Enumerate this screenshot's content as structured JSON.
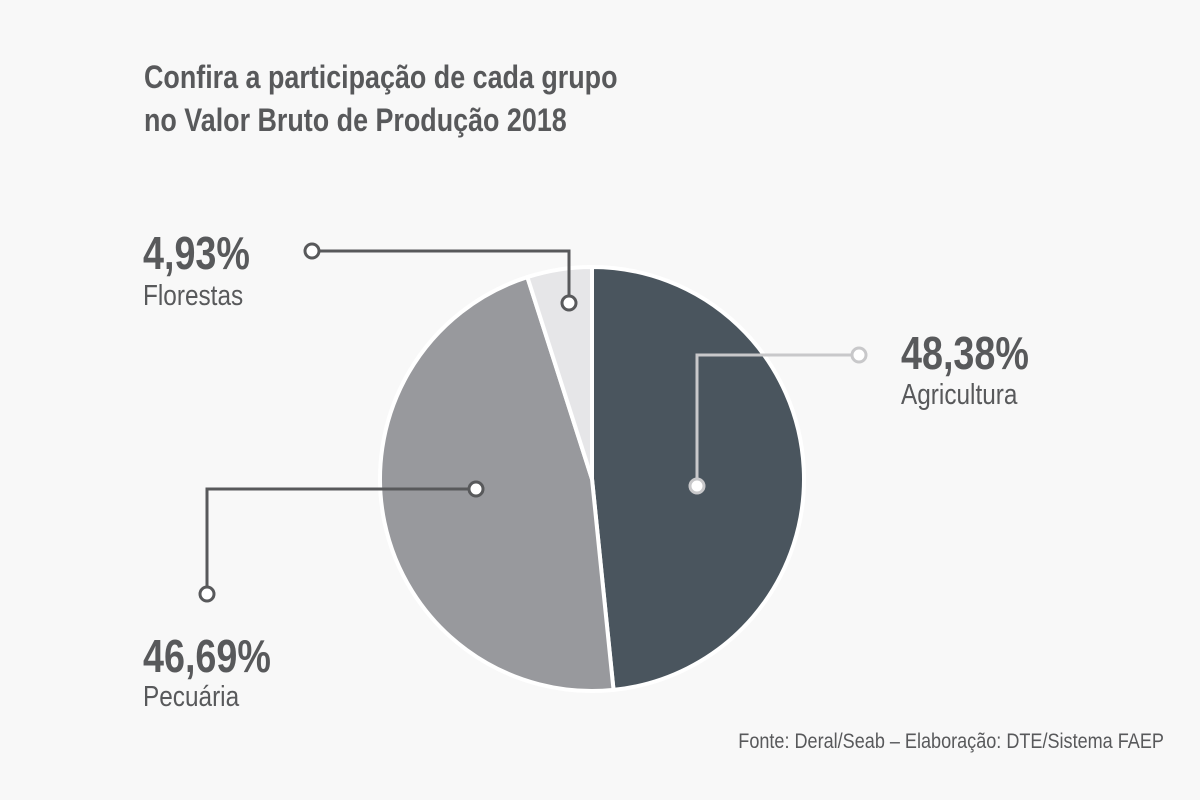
{
  "title": {
    "line1": "Confira a participação de cada grupo",
    "line2": "no Valor Bruto de Produção 2018"
  },
  "source": "Fonte: Deral/Seab – Elaboração: DTE/Sistema FAEP",
  "colors": {
    "background": "#f8f8f8",
    "agricultura": "#4a555e",
    "pecuaria": "#98999d",
    "florestas": "#e6e6e8",
    "text": "#58595b",
    "leader_dark": "#58595b",
    "leader_light": "#c8c8ca"
  },
  "chart_data": {
    "type": "pie",
    "title": "Confira a participação de cada grupo no Valor Bruto de Produção 2018",
    "unit": "%",
    "slices": [
      {
        "label": "Agricultura",
        "value": 48.38,
        "display": "48,38%"
      },
      {
        "label": "Pecuária",
        "value": 46.69,
        "display": "46,69%"
      },
      {
        "label": "Florestas",
        "value": 4.93,
        "display": "4,93%"
      }
    ],
    "start_angle_deg": 0,
    "direction": "clockwise",
    "legend": "none (callout labels with leader lines)"
  }
}
